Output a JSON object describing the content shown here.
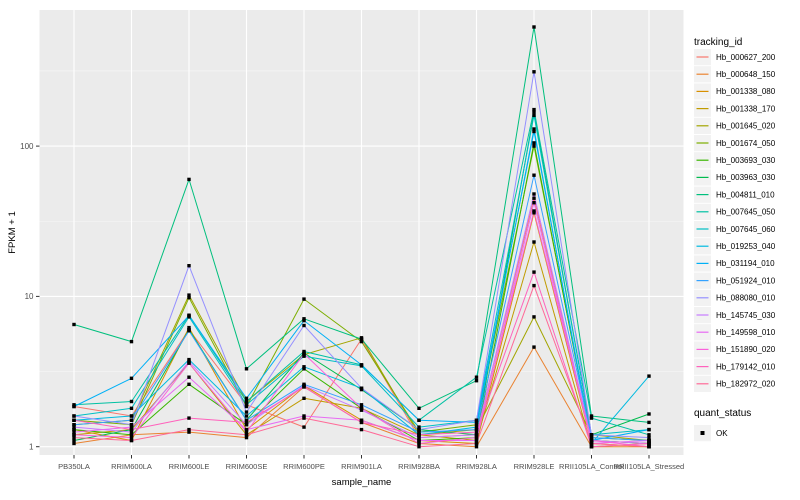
{
  "chart_data": {
    "type": "line",
    "title": "",
    "xlabel": "sample_name",
    "ylabel": "FPKM + 1",
    "y_scale": "log10",
    "y_ticks": [
      1,
      10,
      100
    ],
    "y_minor": [
      3.162,
      31.62,
      316.2
    ],
    "ylim": [
      0.88,
      800
    ],
    "grid": true,
    "legend_position": "right",
    "legend_color_title": "tracking_id",
    "legend_shape_title": "quant_status",
    "legend_shape_entries": [
      "OK"
    ],
    "point_shape": "filled-square",
    "point_color": "#000000",
    "categories": [
      "PB350LA",
      "RRIM600LA",
      "RRIM600LE",
      "RRIM600SE",
      "RRIM600PE",
      "RRIM901LA",
      "RRIM928BA",
      "RRIM928LA",
      "RRIM928LE",
      "RRII105LA_Control",
      "RRII105LA_Stressed"
    ],
    "series": [
      {
        "name": "Hb_000627_200",
        "color": "#F8766D",
        "values": [
          1.85,
          1.6,
          6.0,
          1.9,
          1.35,
          5.2,
          1.15,
          1.2,
          45,
          1.1,
          1.05
        ]
      },
      {
        "name": "Hb_000648_150",
        "color": "#EA8331",
        "values": [
          1.05,
          1.2,
          1.25,
          1.15,
          2.5,
          1.45,
          1.05,
          1.0,
          4.6,
          1.0,
          1.0
        ]
      },
      {
        "name": "Hb_001338_080",
        "color": "#D89000",
        "values": [
          1.3,
          1.1,
          6.2,
          1.3,
          2.55,
          1.5,
          1.1,
          1.05,
          36,
          1.05,
          1.0
        ]
      },
      {
        "name": "Hb_001338_170",
        "color": "#C09B00",
        "values": [
          1.2,
          1.3,
          3.6,
          1.2,
          2.1,
          1.8,
          1.2,
          1.1,
          23,
          1.0,
          1.05
        ]
      },
      {
        "name": "Hb_001645_020",
        "color": "#A3A500",
        "values": [
          1.4,
          1.5,
          10.2,
          2.0,
          4.1,
          5.3,
          1.2,
          1.3,
          7.3,
          1.2,
          1.1
        ]
      },
      {
        "name": "Hb_001674_050",
        "color": "#7CAE00",
        "values": [
          1.5,
          1.4,
          9.8,
          1.85,
          9.6,
          5.0,
          1.25,
          1.4,
          100,
          1.15,
          1.1
        ]
      },
      {
        "name": "Hb_003693_030",
        "color": "#39B600",
        "values": [
          1.3,
          1.2,
          2.6,
          1.4,
          3.3,
          1.8,
          1.1,
          1.15,
          105,
          1.1,
          1.05
        ]
      },
      {
        "name": "Hb_003963_030",
        "color": "#00BB4E",
        "values": [
          1.1,
          1.3,
          6.0,
          1.5,
          4.2,
          2.4,
          1.3,
          1.2,
          168,
          1.2,
          1.65
        ]
      },
      {
        "name": "Hb_004811_010",
        "color": "#00BF7D",
        "values": [
          6.5,
          5.0,
          60,
          3.3,
          7.1,
          5.2,
          1.8,
          2.75,
          620,
          1.6,
          1.45
        ]
      },
      {
        "name": "Hb_007645_050",
        "color": "#00C1A3",
        "values": [
          1.9,
          2.0,
          7.5,
          2.0,
          4.3,
          3.5,
          1.5,
          2.9,
          175,
          1.55,
          1.2
        ]
      },
      {
        "name": "Hb_007645_060",
        "color": "#00BFC4",
        "values": [
          1.6,
          1.8,
          7.3,
          1.9,
          4.0,
          3.45,
          1.35,
          1.5,
          160,
          1.2,
          1.3
        ]
      },
      {
        "name": "Hb_019253_040",
        "color": "#00BAE0",
        "values": [
          1.5,
          1.6,
          3.8,
          1.6,
          3.4,
          2.45,
          1.2,
          1.35,
          130,
          1.05,
          2.95
        ]
      },
      {
        "name": "Hb_031194_010",
        "color": "#00B0F6",
        "values": [
          1.85,
          2.85,
          7.45,
          2.1,
          6.9,
          3.5,
          1.5,
          1.45,
          125,
          1.1,
          1.3
        ]
      },
      {
        "name": "Hb_051924_010",
        "color": "#35A2FF",
        "values": [
          1.4,
          1.5,
          5.9,
          1.5,
          2.6,
          1.9,
          1.25,
          1.3,
          64,
          1.15,
          1.1
        ]
      },
      {
        "name": "Hb_088080_010",
        "color": "#9590FF",
        "values": [
          1.6,
          1.4,
          16,
          1.7,
          6.4,
          2.45,
          1.3,
          1.5,
          312,
          1.2,
          1.15
        ]
      },
      {
        "name": "Hb_145745_030",
        "color": "#C77CFF",
        "values": [
          1.35,
          1.25,
          3.7,
          1.4,
          2.55,
          1.75,
          1.15,
          1.2,
          48,
          1.1,
          1.05
        ]
      },
      {
        "name": "Hb_149598_010",
        "color": "#E76BF3",
        "values": [
          1.25,
          1.35,
          2.9,
          1.3,
          1.6,
          1.5,
          1.1,
          1.1,
          42,
          1.05,
          1.1
        ]
      },
      {
        "name": "Hb_151890_020",
        "color": "#FA62DB",
        "values": [
          1.2,
          1.15,
          3.6,
          1.25,
          4.15,
          1.8,
          1.05,
          1.15,
          37,
          1.1,
          1.0
        ]
      },
      {
        "name": "Hb_179142_010",
        "color": "#FF62BC",
        "values": [
          1.5,
          1.3,
          1.55,
          1.45,
          2.5,
          1.45,
          1.2,
          1.25,
          14.5,
          1.0,
          1.05
        ]
      },
      {
        "name": "Hb_182972_020",
        "color": "#FF6A98",
        "values": [
          1.15,
          1.1,
          1.3,
          1.2,
          1.55,
          1.3,
          1.0,
          1.05,
          11.8,
          1.05,
          1.0
        ]
      }
    ],
    "colors": {
      "panel_bg": "#EBEBEB",
      "grid_major": "#FFFFFF",
      "grid_minor": "#F7F7F7",
      "tick_text": "#4D4D4D",
      "axis_title": "#000000",
      "legend_key_bg": "#F2F2F2",
      "tick_mark": "#333333"
    }
  }
}
